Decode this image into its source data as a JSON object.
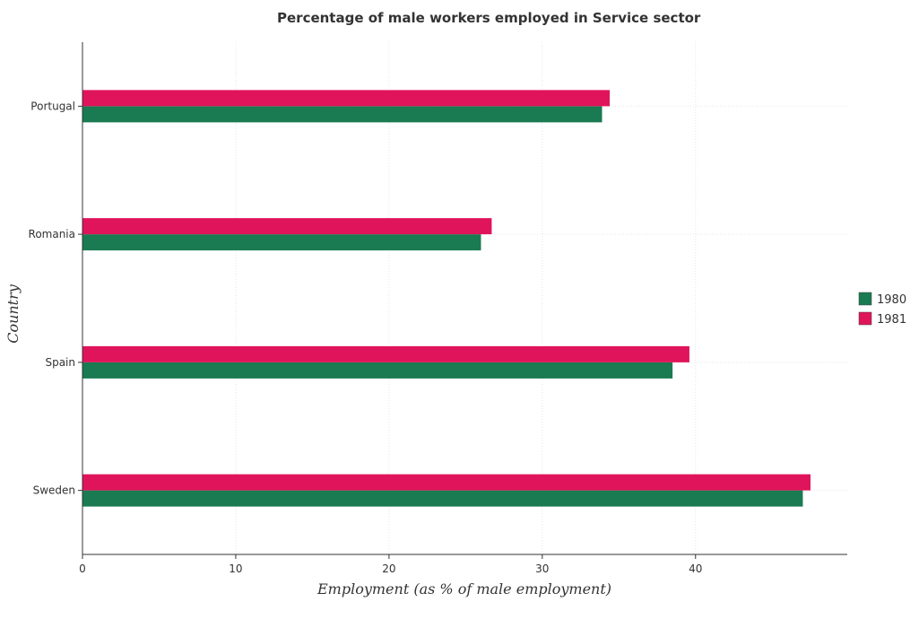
{
  "chart_data": {
    "type": "bar",
    "orientation": "horizontal",
    "title": "Percentage of male workers employed in Service sector",
    "xlabel": "Employment (as % of male employment)",
    "ylabel": "Country",
    "categories": [
      "Portugal",
      "Romania",
      "Spain",
      "Sweden"
    ],
    "series": [
      {
        "name": "1980",
        "color": "#1a7a52",
        "values": [
          33.9,
          26.0,
          38.5,
          47.0
        ]
      },
      {
        "name": "1981",
        "color": "#e0145a",
        "values": [
          34.4,
          26.7,
          39.6,
          47.5
        ]
      }
    ],
    "xlim": [
      0,
      49.9
    ],
    "xticks": [
      0,
      10,
      20,
      30,
      40
    ],
    "grid": true,
    "legend_position": "right"
  }
}
